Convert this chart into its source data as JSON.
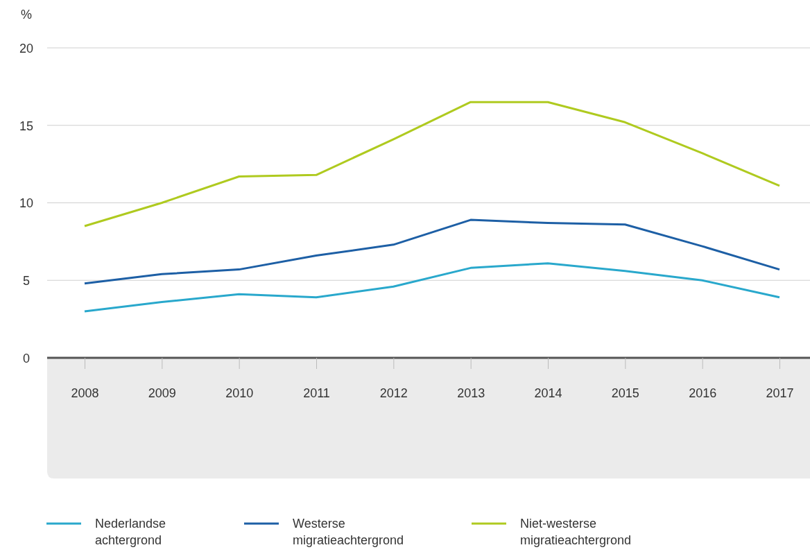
{
  "chart_data": {
    "type": "line",
    "ylabel": "%",
    "categories": [
      "2008",
      "2009",
      "2010",
      "2011",
      "2012",
      "2013",
      "2014",
      "2015",
      "2016",
      "2017"
    ],
    "ylim": [
      0,
      20
    ],
    "yticks": [
      0,
      5,
      10,
      15,
      20
    ],
    "grid": "y",
    "legend": "bottom",
    "line_style": "solid",
    "marker": "none",
    "series": [
      {
        "name": "Nederlandse achtergrond",
        "color": "#29a8cc",
        "values": [
          3.0,
          3.6,
          4.1,
          3.9,
          4.6,
          5.8,
          6.1,
          5.6,
          5.0,
          3.9
        ]
      },
      {
        "name": "Westerse migratieachtergrond",
        "color": "#1d5fa5",
        "values": [
          4.8,
          5.4,
          5.7,
          6.6,
          7.3,
          8.9,
          8.7,
          8.6,
          7.2,
          5.7
        ]
      },
      {
        "name": "Niet-westerse migratieachtergrond",
        "color": "#afca1f",
        "values": [
          8.5,
          10.0,
          11.7,
          11.8,
          14.1,
          16.5,
          16.5,
          15.2,
          13.2,
          11.1
        ]
      }
    ]
  }
}
